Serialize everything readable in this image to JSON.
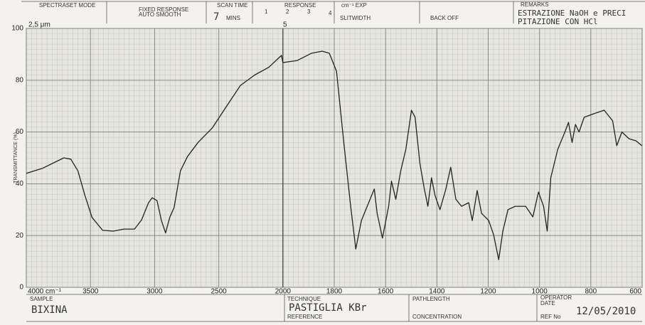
{
  "chart_data": {
    "type": "line",
    "y_label": "TRANSMITTANCE (%)",
    "top_labels": [
      "2,5 μm",
      "5"
    ],
    "header": {
      "mode": "SPECTRASET MODE",
      "fixed": "FIXED RESPONSE",
      "smooth": "AUTO SMOOTH",
      "scan_time": "SCAN TIME",
      "scan_value": "7",
      "mins": "MINS",
      "response": "RESPONSE",
      "response_scale": [
        "1",
        "2",
        "3",
        "4"
      ],
      "exp": "cm⁻¹ EXP",
      "slitwidth": "SLITWIDTH",
      "back_off": "BACK OFF",
      "remarks": "REMARKS",
      "remarks_text": [
        "ESTRAZIONE NaOH e PRECI",
        "PITAZIONE CON HCl"
      ]
    },
    "footer": {
      "sample": "SAMPLE",
      "sample_name": "BIXINA",
      "technique": "TECHNIQUE",
      "technique_value": "PASTIGLIA KBr",
      "reference": "REFERENCE",
      "pathlength": "PATHLENGTH",
      "concentration": "CONCENTRATION",
      "operator": "OPERATOR",
      "date": "DATE",
      "ref_no": "REF No",
      "date_value": "12/05/2010"
    },
    "xlim": [
      4000,
      600
    ],
    "x_break": 2000,
    "x_break_factor": 2,
    "xticks": [
      {
        "value": 4000,
        "label": "4000 cm⁻¹"
      },
      3500,
      3000,
      2500,
      2000,
      1800,
      1600,
      1400,
      1200,
      1000,
      800,
      600
    ],
    "ylim": [
      0,
      100
    ],
    "yticks": [
      0,
      20,
      40,
      60,
      80,
      100
    ],
    "grid": true,
    "color": "#222222",
    "x": [
      4000,
      3873,
      3708,
      3653,
      3598,
      3543,
      3488,
      3405,
      3322,
      3240,
      3157,
      3102,
      3047,
      3019,
      2981,
      2948,
      2915,
      2882,
      2848,
      2799,
      2744,
      2661,
      2551,
      2441,
      2331,
      2220,
      2110,
      2011,
      2000,
      1944,
      1889,
      1847,
      1819,
      1791,
      1763,
      1736,
      1716,
      1694,
      1666,
      1644,
      1633,
      1612,
      1588,
      1577,
      1560,
      1541,
      1521,
      1499,
      1485,
      1466,
      1449,
      1435,
      1421,
      1407,
      1388,
      1365,
      1346,
      1326,
      1304,
      1276,
      1262,
      1243,
      1226,
      1198,
      1179,
      1159,
      1143,
      1123,
      1095,
      1054,
      1026,
      1004,
      984,
      970,
      956,
      929,
      901,
      887,
      873,
      860,
      846,
      826,
      790,
      748,
      715,
      699,
      679,
      651,
      624,
      601
    ],
    "values": [
      44,
      46,
      50,
      49.5,
      45,
      35.4,
      27,
      22,
      21.7,
      22.5,
      22.5,
      26,
      32.7,
      34.6,
      33.5,
      26,
      21,
      27,
      30.8,
      45,
      50.5,
      56,
      61.5,
      69.8,
      78,
      82,
      85,
      89.6,
      86.8,
      87.6,
      90.4,
      91.2,
      90.4,
      83.5,
      56,
      31.3,
      14.8,
      25.8,
      32.7,
      38,
      28.6,
      19,
      31.3,
      41,
      34,
      45,
      53.3,
      68.4,
      65.7,
      47.8,
      38,
      31.3,
      42.3,
      35.4,
      30,
      38,
      46.4,
      34,
      31.3,
      32.7,
      25.8,
      37.4,
      28.6,
      25.8,
      20.3,
      10.7,
      21.7,
      30,
      31.3,
      31.3,
      27.2,
      36.8,
      31.3,
      21.7,
      42.3,
      53.3,
      60,
      63.7,
      56,
      62.9,
      60,
      65.7,
      67,
      68.4,
      64.3,
      54.7,
      60,
      57.4,
      56.6,
      54.7
    ]
  }
}
